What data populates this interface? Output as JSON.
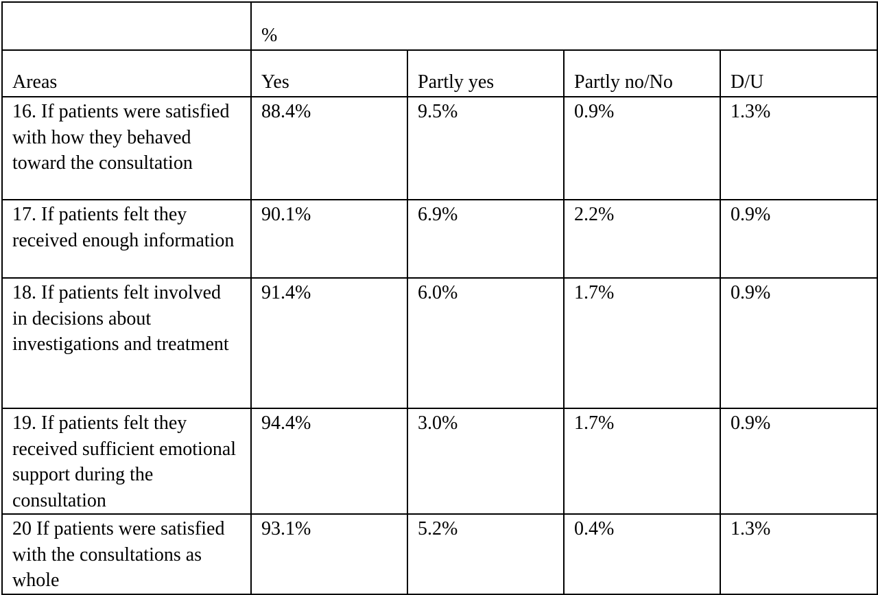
{
  "table": {
    "group_header": "%",
    "columns": [
      "Areas",
      "Yes",
      "Partly yes",
      "Partly no/No",
      "D/U"
    ],
    "rows": [
      [
        "16. If patients were satisfied with how they behaved toward the consultation",
        "88.4%",
        "9.5%",
        "0.9%",
        "1.3%"
      ],
      [
        "17. If patients felt they received enough information",
        "90.1%",
        "6.9%",
        "2.2%",
        "0.9%"
      ],
      [
        "18. If patients felt involved\nin decisions about investigations and treatment",
        "91.4%",
        "6.0%",
        "1.7%",
        "0.9%"
      ],
      [
        "19. If patients felt they received sufficient emotional support during the consultation",
        "94.4%",
        "3.0%",
        "1.7%",
        "0.9%"
      ],
      [
        "20 If patients were satisfied with the consultations as whole",
        "93.1%",
        "5.2%",
        "0.4%",
        "1.3%"
      ]
    ]
  }
}
